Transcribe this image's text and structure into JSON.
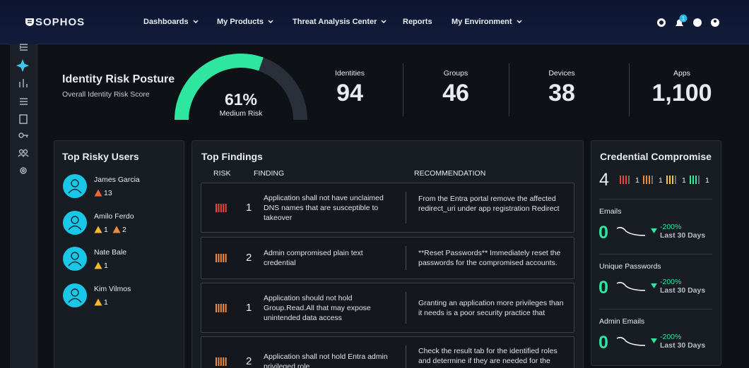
{
  "header": {
    "brand": "SOPHOS",
    "nav": [
      {
        "label": "Dashboards",
        "dropdown": true
      },
      {
        "label": "My Products",
        "dropdown": true
      },
      {
        "label": "Threat Analysis Center",
        "dropdown": true
      },
      {
        "label": "Reports",
        "dropdown": false
      },
      {
        "label": "My Environment",
        "dropdown": true
      }
    ],
    "notification_count": "1"
  },
  "posture": {
    "title": "Identity Risk Posture",
    "subtitle": "Overall Identity Risk Score",
    "score": {
      "value": 61,
      "label": "61%"
    },
    "score_range": [
      0,
      100
    ],
    "rating": "Medium Risk"
  },
  "stats": [
    {
      "label": "Identities",
      "value": "94"
    },
    {
      "label": "Groups",
      "value": "46"
    },
    {
      "label": "Devices",
      "value": "38"
    },
    {
      "label": "Apps",
      "value": "1,100"
    }
  ],
  "risky_users": {
    "title": "Top Risky Users",
    "users": [
      {
        "name": "James Garcia",
        "alerts": [
          {
            "color": "#f0643c",
            "count": "13"
          }
        ]
      },
      {
        "name": "Amilo Ferdo",
        "alerts": [
          {
            "color": "#f5b82e",
            "count": "1"
          },
          {
            "color": "#f08a3c",
            "count": "2"
          }
        ]
      },
      {
        "name": "Nate Bale",
        "alerts": [
          {
            "color": "#f5b82e",
            "count": "1"
          }
        ]
      },
      {
        "name": "Kim Vilmos",
        "alerts": [
          {
            "color": "#f5b82e",
            "count": "1"
          }
        ]
      }
    ]
  },
  "findings": {
    "title": "Top Findings",
    "columns": [
      "RISK",
      "FINDING",
      "RECOMMENDATION"
    ],
    "rows": [
      {
        "risk_color": "#e8463c",
        "priority": "1",
        "finding": "Application shall not have unclaimed DNS names that are susceptible to takeover",
        "recommendation": "From the Entra portal remove the affected redirect_uri under app registration Redirect"
      },
      {
        "risk_color": "#f08a3c",
        "priority": "2",
        "finding": "Admin compromised plain text credential",
        "recommendation": "**Reset Passwords** Immediately reset the passwords for the compromised accounts."
      },
      {
        "risk_color": "#f08a3c",
        "priority": "1",
        "finding": "Application should not hold Group.Read.All that may expose unintended data access",
        "recommendation": "Granting an application more privileges than it needs is a poor security practice that"
      },
      {
        "risk_color": "#f08a3c",
        "priority": "2",
        "finding": "Application shall not hold Entra admin privileged role",
        "recommendation": "Check the result tab for the identified roles and determine if they are needed for the"
      }
    ]
  },
  "credentials": {
    "title": "Credential Compromise",
    "total": "4",
    "breakdown": [
      {
        "color": "#e8463c",
        "count": "1"
      },
      {
        "color": "#f08a3c",
        "count": "1"
      },
      {
        "color": "#f5c842",
        "count": "1"
      },
      {
        "color": "#3ce6a0",
        "count": "1"
      }
    ],
    "metrics": [
      {
        "label": "Emails",
        "value": "0",
        "change": "-200%",
        "period": "Last 30 Days"
      },
      {
        "label": "Unique Passwords",
        "value": "0",
        "change": "-200%",
        "period": "Last 30 Days"
      },
      {
        "label": "Admin Emails",
        "value": "0",
        "change": "-200%",
        "period": "Last 30 Days"
      }
    ]
  }
}
